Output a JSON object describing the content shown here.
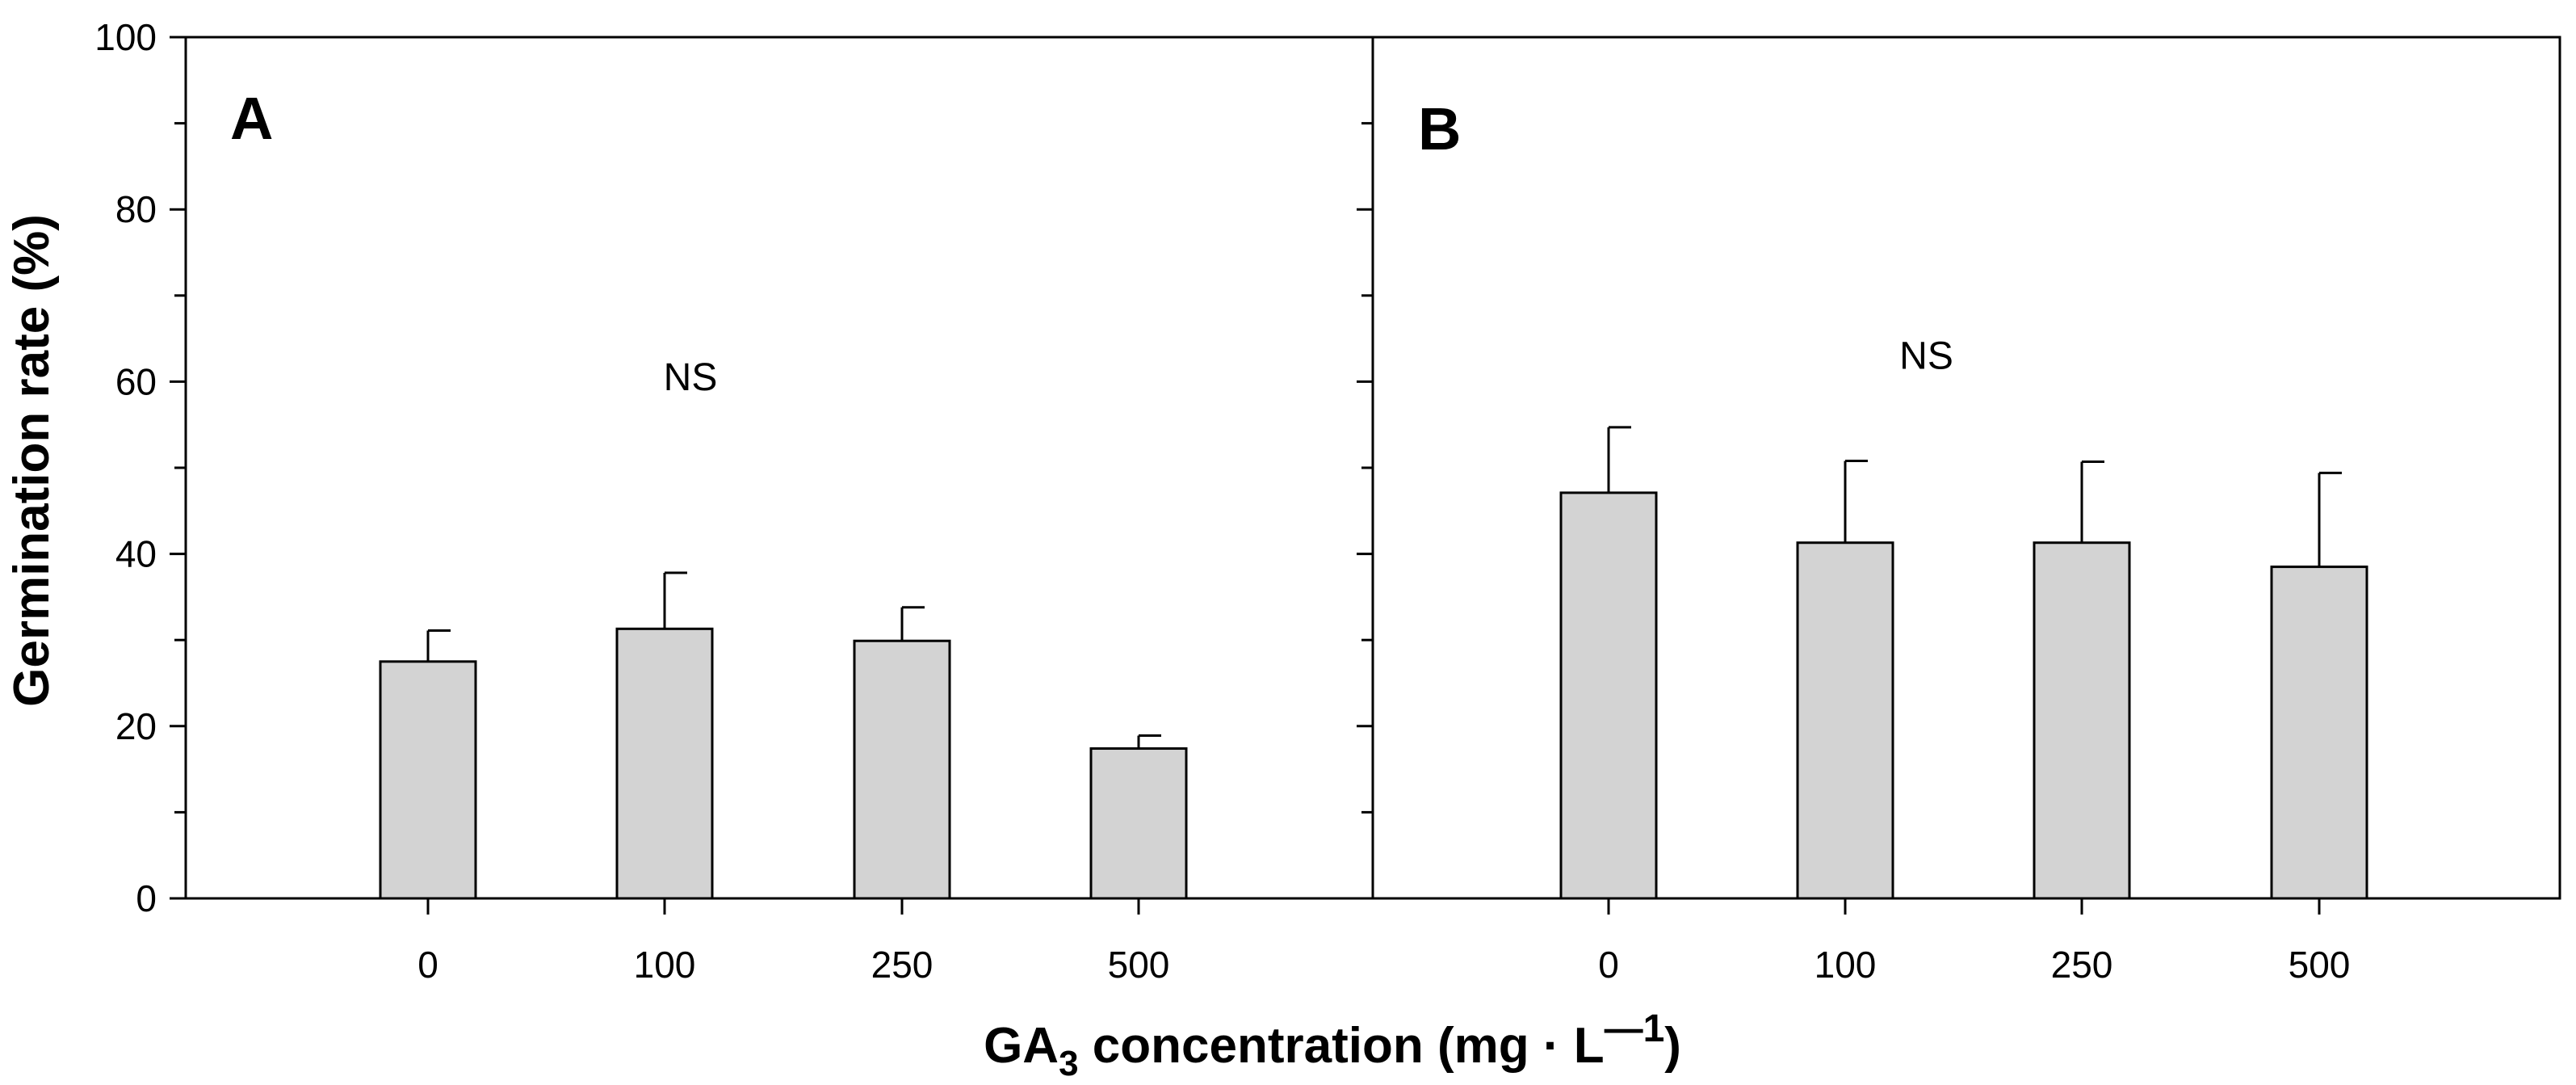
{
  "chart_data": [
    {
      "type": "bar",
      "panel_label": "A",
      "categories": [
        "0",
        "100",
        "250",
        "500"
      ],
      "values": [
        27.5,
        31.3,
        29.9,
        17.4
      ],
      "errors": [
        3.6,
        6.5,
        3.9,
        1.5
      ],
      "annotation": "NS",
      "annotation_value": 59,
      "ylabel": "Germination rate (%)",
      "ylim": [
        0,
        100
      ],
      "yticks": [
        0,
        20,
        40,
        60,
        80,
        100
      ],
      "bar_color": "#d3d3d3"
    },
    {
      "type": "bar",
      "panel_label": "B",
      "categories": [
        "0",
        "100",
        "250",
        "500"
      ],
      "values": [
        47.1,
        41.3,
        41.3,
        38.5
      ],
      "errors": [
        7.6,
        9.5,
        9.4,
        10.9
      ],
      "annotation": "NS",
      "annotation_value": 61.5,
      "ylim": [
        0,
        100
      ],
      "bar_color": "#d3d3d3"
    }
  ],
  "xlabel": {
    "main": "GA",
    "subscript": "3",
    "middle": " concentration (mg · L",
    "superscript": "—1",
    "end": ")"
  }
}
